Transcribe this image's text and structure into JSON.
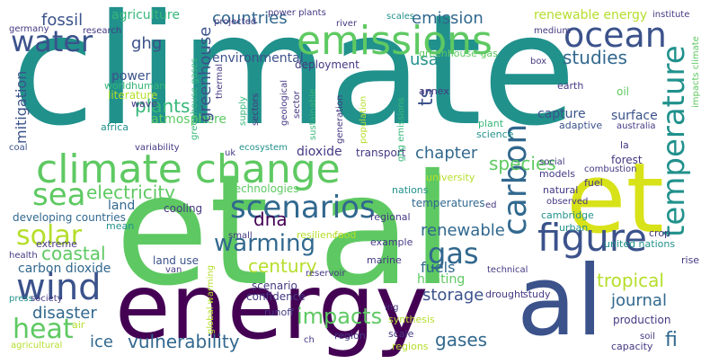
{
  "words": [
    {
      "text": "climate",
      "color": "#21918c"
    },
    {
      "text": "et al",
      "color": "#5ec962"
    },
    {
      "text": "energy",
      "color": "#440154"
    },
    {
      "text": "et",
      "color": "#d8e219"
    },
    {
      "text": "al",
      "color": "#3b528b"
    },
    {
      "text": "climate change",
      "color": "#5ec962"
    },
    {
      "text": "emissions",
      "color": "#5ec962"
    },
    {
      "text": "water",
      "color": "#3b528b"
    },
    {
      "text": "sea",
      "color": "#5ec962"
    },
    {
      "text": "wind",
      "color": "#3b528b"
    },
    {
      "text": "figure",
      "color": "#3b528b"
    },
    {
      "text": "ocean",
      "color": "#3b528b"
    },
    {
      "text": "temperature",
      "color": "#21918c"
    },
    {
      "text": "carbon",
      "color": "#31688e"
    },
    {
      "text": "scenarios",
      "color": "#31688e"
    },
    {
      "text": "warming",
      "color": "#31688e"
    },
    {
      "text": "electricity",
      "color": "#5ec962"
    },
    {
      "text": "solar",
      "color": "#b5de2b"
    },
    {
      "text": "heat",
      "color": "#5ec962"
    },
    {
      "text": "gas",
      "color": "#31688e"
    },
    {
      "text": "fossil",
      "color": "#3b528b"
    },
    {
      "text": "ghg",
      "color": "#3b528b"
    },
    {
      "text": "countries",
      "color": "#31688e"
    },
    {
      "text": "emission",
      "color": "#31688e"
    },
    {
      "text": "studies",
      "color": "#31688e"
    },
    {
      "text": "plants",
      "color": "#35b779"
    },
    {
      "text": "atmosphere",
      "color": "#5ec962"
    },
    {
      "text": "greenhouse",
      "color": "#3b528b"
    },
    {
      "text": "mitigation",
      "color": "#3b528b"
    },
    {
      "text": "species",
      "color": "#5ec962"
    },
    {
      "text": "chapter",
      "color": "#31688e"
    },
    {
      "text": "coastal",
      "color": "#5ec962"
    },
    {
      "text": "disaster",
      "color": "#31688e"
    },
    {
      "text": "impacts",
      "color": "#5ec962"
    },
    {
      "text": "vulnerability",
      "color": "#31688e"
    },
    {
      "text": "ice",
      "color": "#31688e"
    },
    {
      "text": "gases",
      "color": "#31688e"
    },
    {
      "text": "fi",
      "color": "#31688e"
    },
    {
      "text": "renewable",
      "color": "#31688e"
    },
    {
      "text": "tropical",
      "color": "#b5de2b"
    },
    {
      "text": "journal",
      "color": "#31688e"
    },
    {
      "text": "storage",
      "color": "#3b528b"
    },
    {
      "text": "usa",
      "color": "#21918c"
    },
    {
      "text": "dna",
      "color": "#440154"
    },
    {
      "text": "century",
      "color": "#b5de2b"
    },
    {
      "text": "renewable energy",
      "color": "#b5de2b"
    },
    {
      "text": "agriculture",
      "color": "#35b779"
    },
    {
      "text": "power plants",
      "color": "#443983"
    },
    {
      "text": "scales",
      "color": "#21918c"
    },
    {
      "text": "institute",
      "color": "#443983"
    },
    {
      "text": "medium",
      "color": "#443983"
    },
    {
      "text": "river",
      "color": "#443983"
    },
    {
      "text": "greenhouse gas",
      "color": "#5ec962"
    },
    {
      "text": "environmental",
      "color": "#3b528b"
    },
    {
      "text": "deployment",
      "color": "#443983"
    },
    {
      "text": "power",
      "color": "#3b528b"
    },
    {
      "text": "world",
      "color": "#35b779"
    },
    {
      "text": "human",
      "color": "#35b779"
    },
    {
      "text": "literature",
      "color": "#b5de2b"
    },
    {
      "text": "wave",
      "color": "#443983"
    },
    {
      "text": "africa",
      "color": "#21918c"
    },
    {
      "text": "ts",
      "color": "#3b528b"
    },
    {
      "text": "capture",
      "color": "#3b528b"
    },
    {
      "text": "surface",
      "color": "#3b528b"
    },
    {
      "text": "adaptive",
      "color": "#3b528b"
    },
    {
      "text": "earth",
      "color": "#443983"
    },
    {
      "text": "oil",
      "color": "#5ec962"
    },
    {
      "text": "annex",
      "color": "#443983"
    },
    {
      "text": "plant",
      "color": "#35b779"
    },
    {
      "text": "science",
      "color": "#21918c"
    },
    {
      "text": "australia",
      "color": "#443983"
    },
    {
      "text": "la",
      "color": "#443983"
    },
    {
      "text": "forest",
      "color": "#443983"
    },
    {
      "text": "combustion",
      "color": "#443983"
    },
    {
      "text": "dioxide",
      "color": "#443983"
    },
    {
      "text": "transport",
      "color": "#443983"
    },
    {
      "text": "technologies",
      "color": "#5ec962"
    },
    {
      "text": "university",
      "color": "#b5de2b"
    },
    {
      "text": "nations",
      "color": "#21918c"
    },
    {
      "text": "temperatures",
      "color": "#31688e"
    },
    {
      "text": "natural",
      "color": "#443983"
    },
    {
      "text": "fuel",
      "color": "#443983"
    },
    {
      "text": "models",
      "color": "#443983"
    },
    {
      "text": "social",
      "color": "#443983"
    },
    {
      "text": "observed",
      "color": "#443983"
    },
    {
      "text": "crop",
      "color": "#443983"
    },
    {
      "text": "fuels",
      "color": "#31688e"
    },
    {
      "text": "heating",
      "color": "#5ec962"
    },
    {
      "text": "cambridge",
      "color": "#21918c"
    },
    {
      "text": "united nations",
      "color": "#21918c"
    },
    {
      "text": "rise",
      "color": "#443983"
    },
    {
      "text": "urban",
      "color": "#21918c"
    },
    {
      "text": "cooling",
      "color": "#443983"
    },
    {
      "text": "land",
      "color": "#31688e"
    },
    {
      "text": "developing countries",
      "color": "#31688e"
    },
    {
      "text": "mean",
      "color": "#21918c"
    },
    {
      "text": "extreme",
      "color": "#443983"
    },
    {
      "text": "health",
      "color": "#443983"
    },
    {
      "text": "press",
      "color": "#21918c"
    },
    {
      "text": "society",
      "color": "#443983"
    },
    {
      "text": "carbon dioxide",
      "color": "#31688e"
    },
    {
      "text": "land use",
      "color": "#3b528b"
    },
    {
      "text": "van",
      "color": "#443983"
    },
    {
      "text": "scenario",
      "color": "#443983"
    },
    {
      "text": "confidence",
      "color": "#443983"
    },
    {
      "text": "resilience",
      "color": "#b5de2b"
    },
    {
      "text": "food",
      "color": "#b5de2b"
    },
    {
      "text": "regional",
      "color": "#443983"
    },
    {
      "text": "example",
      "color": "#443983"
    },
    {
      "text": "marine",
      "color": "#443983"
    },
    {
      "text": "technical",
      "color": "#443983"
    },
    {
      "text": "drought",
      "color": "#443983"
    },
    {
      "text": "study",
      "color": "#443983"
    },
    {
      "text": "ing",
      "color": "#443983"
    },
    {
      "text": "synthesis",
      "color": "#b5de2b"
    },
    {
      "text": "production",
      "color": "#443983"
    },
    {
      "text": "runoff",
      "color": "#443983"
    },
    {
      "text": "region",
      "color": "#443983"
    },
    {
      "text": "scale",
      "color": "#443983"
    },
    {
      "text": "soil",
      "color": "#443983"
    },
    {
      "text": "capacity",
      "color": "#443983"
    },
    {
      "text": "regions",
      "color": "#b5de2b"
    },
    {
      "text": "ch",
      "color": "#443983"
    },
    {
      "text": "air",
      "color": "#b5de2b"
    },
    {
      "text": "agricultural",
      "color": "#b5de2b"
    },
    {
      "text": "small",
      "color": "#443983"
    },
    {
      "text": "reservoir",
      "color": "#443983"
    },
    {
      "text": "germany",
      "color": "#443983"
    },
    {
      "text": "research",
      "color": "#443983"
    },
    {
      "text": "projected",
      "color": "#443983"
    },
    {
      "text": "box",
      "color": "#443983"
    },
    {
      "text": "coal",
      "color": "#3b528b"
    },
    {
      "text": "variability",
      "color": "#443983"
    },
    {
      "text": "uk",
      "color": "#443983"
    },
    {
      "text": "ecosystem",
      "color": "#21918c"
    },
    {
      "text": "ed",
      "color": "#443983"
    },
    {
      "text": "greenhouse gases",
      "color": "#35b779"
    },
    {
      "text": "thermal",
      "color": "#443983"
    },
    {
      "text": "supply",
      "color": "#35b779"
    },
    {
      "text": "sectors",
      "color": "#443983"
    },
    {
      "text": "geological",
      "color": "#443983"
    },
    {
      "text": "sector",
      "color": "#443983"
    },
    {
      "text": "sustainable",
      "color": "#35b779"
    },
    {
      "text": "generation",
      "color": "#443983"
    },
    {
      "text": "population",
      "color": "#b5de2b"
    },
    {
      "text": "ghg emissions",
      "color": "#35b779"
    },
    {
      "text": "impacts climate",
      "color": "#5ec962"
    },
    {
      "text": "global warming",
      "color": "#b5de2b"
    }
  ]
}
